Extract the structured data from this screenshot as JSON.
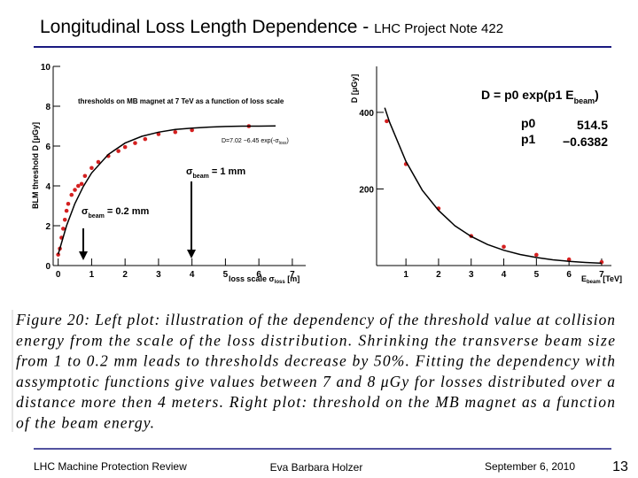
{
  "header": {
    "title": "Longitudinal Loss Length Dependence - ",
    "subtitle": "LHC Project Note 422"
  },
  "chart_data": [
    {
      "type": "scatter",
      "title": "thresholds on MB magnet at 7 TeV as a function of loss scale",
      "y_label": "BLM threshold  D [μGy]",
      "x_label": {
        "main": "loss scale σ",
        "sub": "loss",
        "rest": " [m]"
      },
      "annotations": [
        {
          "main": "σ",
          "sub": "beam",
          "rest": " = 1 mm"
        },
        {
          "main": "σ",
          "sub": "beam",
          "rest": " = 0.2 mm"
        },
        {
          "main": "D=7.02 −6.45 exp(-σ",
          "sub": "loss",
          "rest": ")"
        }
      ],
      "xlim": [
        -0.15,
        7.4
      ],
      "ylim": [
        0,
        10
      ],
      "xticks": [
        0,
        1,
        2,
        3,
        4,
        5,
        6,
        7
      ],
      "yticks": [
        0,
        2,
        4,
        6,
        8,
        10
      ],
      "series": [
        {
          "kind": "points",
          "color": "#d42020",
          "x": [
            0.0,
            0.05,
            0.1,
            0.15,
            0.2,
            0.25,
            0.3,
            0.4,
            0.5,
            0.6,
            0.7,
            0.8,
            1.0,
            1.2,
            1.5,
            1.8,
            2.0,
            2.3,
            2.6,
            3.0,
            3.5,
            4.0,
            5.7
          ],
          "values": [
            0.55,
            0.85,
            1.4,
            1.85,
            2.3,
            2.75,
            3.1,
            3.55,
            3.8,
            4.0,
            4.1,
            4.5,
            4.9,
            5.2,
            5.5,
            5.75,
            5.95,
            6.15,
            6.35,
            6.6,
            6.7,
            6.8,
            7.0
          ]
        },
        {
          "kind": "curve",
          "color": "#000000",
          "x": [
            0,
            0.25,
            0.5,
            0.75,
            1,
            1.5,
            2,
            2.5,
            3,
            3.5,
            4,
            4.5,
            5,
            5.5,
            6,
            6.5
          ],
          "values": [
            0.57,
            2.0,
            3.11,
            3.97,
            4.65,
            5.58,
            6.15,
            6.49,
            6.7,
            6.83,
            6.9,
            6.95,
            6.98,
            7.0,
            7.0,
            7.01
          ]
        }
      ]
    },
    {
      "type": "scatter",
      "y_label": "D [μGy]",
      "x_label": {
        "main": "E",
        "sub": "beam",
        "rest": " [TeV]"
      },
      "annotations": [
        {
          "main": "D = p0 exp(p1 E",
          "sub": "beam",
          "rest": ")"
        }
      ],
      "parameters": [
        {
          "name": "p0",
          "value": "514.5"
        },
        {
          "name": "p1",
          "value": "−0.6382"
        }
      ],
      "xlim": [
        0.1,
        7.3
      ],
      "ylim": [
        0,
        520
      ],
      "xticks": [
        1,
        2,
        3,
        4,
        5,
        6,
        7
      ],
      "yticks": [
        200,
        400
      ],
      "series": [
        {
          "kind": "points",
          "color": "#d42020",
          "x": [
            0.41,
            1,
            2,
            3,
            4,
            5,
            6,
            7
          ],
          "values": [
            377,
            265,
            149,
            77,
            49,
            28,
            16,
            9
          ]
        },
        {
          "kind": "curve",
          "color": "#000000",
          "x": [
            0.35,
            0.5,
            1,
            1.5,
            2,
            2.5,
            3,
            3.5,
            4,
            4.5,
            5,
            5.5,
            6,
            6.5,
            7
          ],
          "values": [
            412,
            374,
            272,
            197,
            144,
            104,
            76,
            55,
            40,
            29,
            21,
            15,
            11,
            8,
            6
          ]
        }
      ]
    }
  ],
  "caption": [
    "Figure 20:  Left plot:  illustration of the dependency of the threshold value at collision",
    "energy from the scale of the loss distribution.  Shrinking the transverse beam size",
    "from 1 to 0.2 mm leads to thresholds decrease by 50%.  Fitting the dependency with",
    "assymptotic functions give values between 7 and 8 μGy for losses distributed over a",
    "distance more then 4 meters.  Right plot:  threshold on the MB magnet as a function",
    "of the beam energy."
  ],
  "footer": {
    "left": "LHC Machine Protection Review",
    "center": "Eva Barbara Holzer",
    "date": "September 6, 2010",
    "page": "13"
  }
}
